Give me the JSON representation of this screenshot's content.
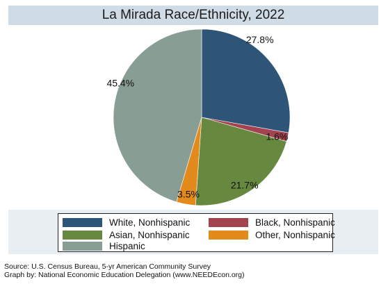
{
  "chart_data": {
    "type": "pie",
    "title": "La Mirada Race/Ethnicity, 2022",
    "slices": [
      {
        "name": "White, Nonhispanic",
        "value": 27.8,
        "label": "27.8%",
        "color": "#2e5578"
      },
      {
        "name": "Black, Nonhispanic",
        "value": 1.6,
        "label": "1.6%",
        "color": "#a3434f"
      },
      {
        "name": "Asian, Nonhispanic",
        "value": 21.7,
        "label": "21.7%",
        "color": "#66893f"
      },
      {
        "name": "Other, Nonhispanic",
        "value": 3.5,
        "label": "3.5%",
        "color": "#e38a1c"
      },
      {
        "name": "Hispanic",
        "value": 45.4,
        "label": "45.4%",
        "color": "#889d94"
      }
    ],
    "start_angle": "12 o'clock",
    "direction": "clockwise",
    "legend_position": "bottom"
  },
  "footer": {
    "source": "Source:  U.S. Census Bureau, 5-yr American Community Survey",
    "credit": "Graph by: National Economic Education Delegation (www.NEEDEcon.org)"
  },
  "colors": {
    "frame": "#e9eef2",
    "title_bar": "#cfdbe5"
  }
}
